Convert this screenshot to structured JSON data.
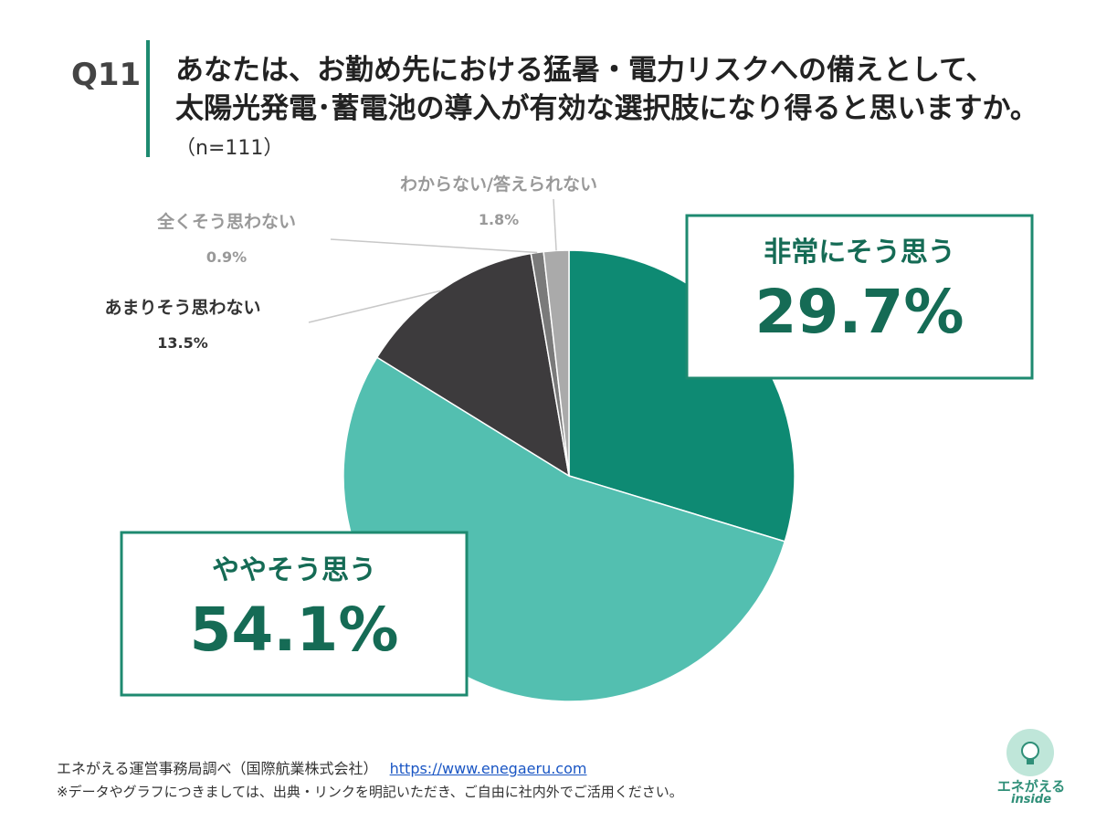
{
  "question": {
    "number": "Q11",
    "line1": "あなたは、お勤め先における猛暑・電力リスクへの備えとして、",
    "line2": "太陽光発電･蓄電池の導入が有効な選択肢になり得ると思いますか。",
    "n": "（n=111）"
  },
  "chart_data": {
    "type": "pie",
    "start_angle_deg": 0,
    "direction": "clockwise",
    "slices": [
      {
        "label": "非常にそう思う",
        "value": 29.7,
        "value_label": "29.7%",
        "color": "#0e8a73"
      },
      {
        "label": "ややそう思う",
        "value": 54.1,
        "value_label": "54.1%",
        "color": "#53bfb0"
      },
      {
        "label": "あまりそう思わない",
        "value": 13.5,
        "value_label": "13.5%",
        "color": "#3d3b3d"
      },
      {
        "label": "全くそう思わない",
        "value": 0.9,
        "value_label": "0.9%",
        "color": "#7a7a7a"
      },
      {
        "label": "わからない/答えられない",
        "value": 1.8,
        "value_label": "1.8%",
        "color": "#aaaaaa"
      }
    ]
  },
  "colors": {
    "accent": "#1e8a70",
    "callout_text": "#156b55",
    "dark_label": "#333333",
    "gray_label": "#999999"
  },
  "footer": {
    "source": "エネがえる運営事務局調べ（国際航業株式会社）",
    "url": "https://www.enegaeru.com",
    "note": "※データやグラフにつきましては、出典・リンクを明記いただき、ご自由に社内外でご活用ください。"
  },
  "logo": {
    "name": "エネがえる",
    "sub": "inside",
    "icon": "lightbulb-icon"
  }
}
